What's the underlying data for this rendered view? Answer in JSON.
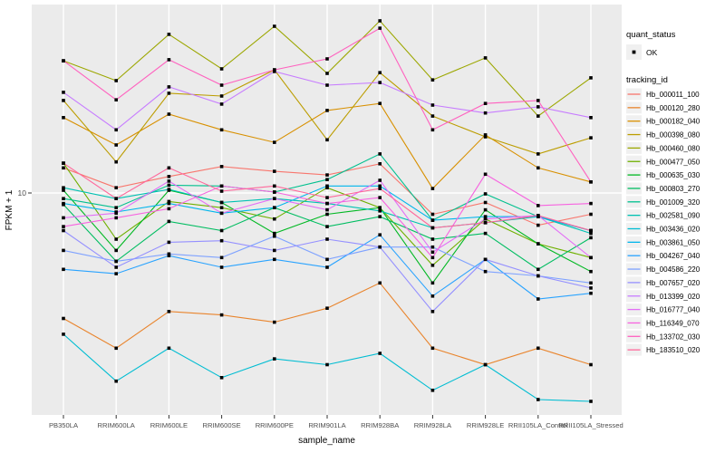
{
  "figure": {
    "kind": "ggplot-line-chart",
    "panel_bg": "#EBEBEB",
    "grid_color": "#FFFFFF",
    "axis_text_color": "#4D4D4D",
    "axis_title_color": "#000000",
    "legend_key_bg": "#F0F0F0",
    "point_color": "#000000",
    "y_axis": {
      "title": "FPKM + 1",
      "tick_labels": [
        "10"
      ]
    },
    "x_axis": {
      "title": "sample_name"
    },
    "legend": {
      "status_title": "quant_status",
      "status_items": [
        {
          "label": "OK",
          "marker": "black-point"
        }
      ],
      "series_title": "tracking_id"
    }
  },
  "chart_data": {
    "type": "line",
    "title": "",
    "xlabel": "sample_name",
    "ylabel": "FPKM + 1",
    "y_scale": "log10",
    "ylim": [
      1,
      70
    ],
    "y_ticks": [
      10
    ],
    "grid": "major",
    "legend_position": "right",
    "point_marker": "small black point (quant_status = OK at every sample)",
    "categories": [
      "PB350LA",
      "RRIM600LA",
      "RRIM600LE",
      "RRIM600SE",
      "RRIM600PE",
      "RRIM901LA",
      "RRIM928BA",
      "RRIM928LA",
      "RRIM928LE",
      "RRII105LA_Control",
      "RRII105LA_Stressed"
    ],
    "series": [
      {
        "name": "Hb_000011_100",
        "color": "#F8766D",
        "values": [
          13.2,
          10.6,
          12.0,
          13.4,
          12.7,
          12.2,
          13.8,
          7.9,
          9.0,
          7.0,
          7.9
        ]
      },
      {
        "name": "Hb_000120_280",
        "color": "#E9842C",
        "values": [
          2.5,
          1.8,
          2.7,
          2.6,
          2.4,
          2.8,
          3.7,
          1.8,
          1.5,
          1.8,
          1.5
        ]
      },
      {
        "name": "Hb_000182_040",
        "color": "#D89000",
        "values": [
          23.0,
          17.0,
          23.9,
          20.1,
          17.5,
          24.9,
          26.9,
          10.5,
          19.0,
          13.2,
          11.3
        ]
      },
      {
        "name": "Hb_000398_080",
        "color": "#BC9D00",
        "values": [
          27.8,
          14.1,
          30.1,
          29.2,
          39.0,
          18.0,
          37.8,
          23.4,
          18.6,
          15.4,
          18.4
        ]
      },
      {
        "name": "Hb_000460_080",
        "color": "#9CA700",
        "values": [
          43.1,
          34.6,
          57.7,
          39.4,
          63.1,
          37.5,
          67.0,
          34.9,
          44.5,
          23.4,
          35.7
        ]
      },
      {
        "name": "Hb_000477_050",
        "color": "#6FB000",
        "values": [
          13.9,
          6.0,
          9.1,
          8.5,
          7.5,
          10.6,
          8.5,
          4.5,
          7.5,
          5.7,
          4.9
        ]
      },
      {
        "name": "Hb_000635_030",
        "color": "#00B822",
        "values": [
          10.3,
          5.3,
          10.3,
          9.0,
          6.4,
          7.9,
          8.5,
          3.7,
          8.3,
          5.7,
          4.2
        ]
      },
      {
        "name": "Hb_000803_270",
        "color": "#00BD61",
        "values": [
          8.8,
          4.7,
          7.3,
          6.6,
          8.5,
          6.9,
          7.7,
          6.0,
          6.4,
          4.3,
          6.1
        ]
      },
      {
        "name": "Hb_001009_320",
        "color": "#00C08E",
        "values": [
          9.4,
          8.5,
          10.9,
          10.8,
          10.1,
          11.6,
          15.4,
          7.4,
          9.9,
          7.7,
          6.6
        ]
      },
      {
        "name": "Hb_002581_090",
        "color": "#00C1B2",
        "values": [
          10.6,
          9.4,
          10.4,
          9.0,
          9.4,
          8.9,
          8.2,
          6.8,
          7.2,
          7.7,
          6.4
        ]
      },
      {
        "name": "Hb_003436_020",
        "color": "#00BDD2",
        "values": [
          2.1,
          1.25,
          1.8,
          1.3,
          1.6,
          1.5,
          1.7,
          1.13,
          1.5,
          1.02,
          1.0
        ]
      },
      {
        "name": "Hb_003861_050",
        "color": "#00B5EC",
        "values": [
          8.9,
          8.1,
          8.9,
          8.0,
          8.5,
          10.8,
          10.8,
          7.4,
          7.7,
          7.7,
          6.6
        ]
      },
      {
        "name": "Hb_004267_040",
        "color": "#29A3FF",
        "values": [
          4.3,
          4.1,
          5.0,
          4.4,
          4.8,
          4.4,
          6.3,
          3.2,
          4.8,
          3.1,
          3.3
        ]
      },
      {
        "name": "Hb_004586_220",
        "color": "#7FA2FF",
        "values": [
          5.3,
          4.7,
          5.1,
          4.9,
          6.2,
          4.8,
          5.5,
          5.5,
          4.2,
          4.0,
          3.7
        ]
      },
      {
        "name": "Hb_007657_020",
        "color": "#9590FF",
        "values": [
          6.6,
          4.4,
          5.8,
          5.9,
          5.3,
          6.0,
          5.5,
          2.7,
          4.8,
          4.0,
          3.5
        ]
      },
      {
        "name": "Hb_013399_020",
        "color": "#C77CFF",
        "values": [
          30.4,
          20.1,
          32.3,
          26.7,
          38.3,
          32.9,
          33.9,
          26.4,
          24.2,
          25.9,
          23.0
        ]
      },
      {
        "name": "Hb_016777_040",
        "color": "#E36EF6",
        "values": [
          7.6,
          8.0,
          11.4,
          8.0,
          9.4,
          8.3,
          11.5,
          5.2,
          7.5,
          7.8,
          4.9
        ]
      },
      {
        "name": "Hb_116349_070",
        "color": "#F763E0",
        "values": [
          6.9,
          7.6,
          8.4,
          10.8,
          10.1,
          8.9,
          9.5,
          4.9,
          12.3,
          8.7,
          8.9
        ]
      },
      {
        "name": "Hb_133702_030",
        "color": "#FF61BF",
        "values": [
          43.1,
          28.0,
          43.6,
          32.9,
          39.0,
          44.0,
          61.8,
          20.1,
          26.9,
          27.8,
          11.3
        ]
      },
      {
        "name": "Hb_183510_020",
        "color": "#FF689B",
        "values": [
          13.9,
          9.4,
          13.2,
          10.2,
          10.8,
          9.5,
          10.5,
          6.8,
          7.2,
          7.8,
          6.6
        ]
      }
    ]
  }
}
